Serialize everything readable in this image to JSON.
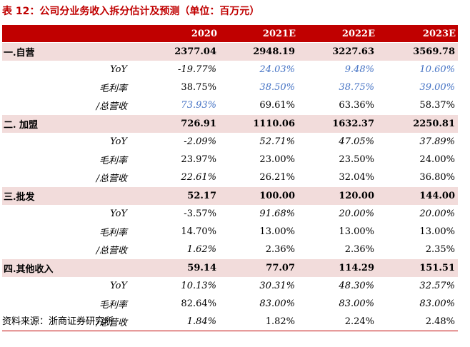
{
  "title": "表 12：公司分业务收入拆分估计及预测（单位：百万元）",
  "columns": [
    "",
    "2020",
    "2021E",
    "2022E",
    "2023E"
  ],
  "sections": [
    {
      "name": "一.自营",
      "values": [
        "2377.04",
        "2948.19",
        "3227.63",
        "3569.78"
      ],
      "rows": [
        {
          "label": "YoY",
          "values": [
            "-19.77%",
            "24.03%",
            "9.48%",
            "10.60%"
          ]
        },
        {
          "label": "毛利率",
          "values": [
            "38.75%",
            "38.50%",
            "38.75%",
            "39.00%"
          ]
        },
        {
          "label": "/总营收",
          "values": [
            "73.93%",
            "69.61%",
            "63.36%",
            "58.37%"
          ]
        }
      ]
    },
    {
      "name": "二. 加盟",
      "values": [
        "726.91",
        "1110.06",
        "1632.37",
        "2250.81"
      ],
      "rows": [
        {
          "label": "YoY",
          "values": [
            "-2.09%",
            "52.71%",
            "47.05%",
            "37.89%"
          ]
        },
        {
          "label": "毛利率",
          "values": [
            "23.97%",
            "23.00%",
            "23.50%",
            "24.00%"
          ]
        },
        {
          "label": "/总营收",
          "values": [
            "22.61%",
            "26.21%",
            "32.04%",
            "36.80%"
          ]
        }
      ]
    },
    {
      "name": "三.批发",
      "values": [
        "52.17",
        "100.00",
        "120.00",
        "144.00"
      ],
      "rows": [
        {
          "label": "YoY",
          "values": [
            "-3.57%",
            "91.68%",
            "20.00%",
            "20.00%"
          ]
        },
        {
          "label": "毛利率",
          "values": [
            "14.70%",
            "13.00%",
            "13.00%",
            "13.00%"
          ]
        },
        {
          "label": "/总营收",
          "values": [
            "1.62%",
            "2.36%",
            "2.36%",
            "2.35%"
          ]
        }
      ]
    },
    {
      "name": "四.其他收入",
      "values": [
        "59.14",
        "77.07",
        "114.29",
        "151.51"
      ],
      "rows": [
        {
          "label": "YoY",
          "values": [
            "10.13%",
            "30.31%",
            "48.30%",
            "32.57%"
          ]
        },
        {
          "label": "毛利率",
          "values": [
            "82.64%",
            "83.00%",
            "83.00%",
            "83.00%"
          ]
        },
        {
          "label": "/总营收",
          "values": [
            "1.84%",
            "1.82%",
            "2.24%",
            "2.48%"
          ]
        }
      ]
    }
  ],
  "source": "资料来源：浙商证券研究所",
  "colors": {
    "header_bg": "#c00000",
    "section_bg": "#f2dcdb",
    "link_blue": "#4472c4"
  }
}
